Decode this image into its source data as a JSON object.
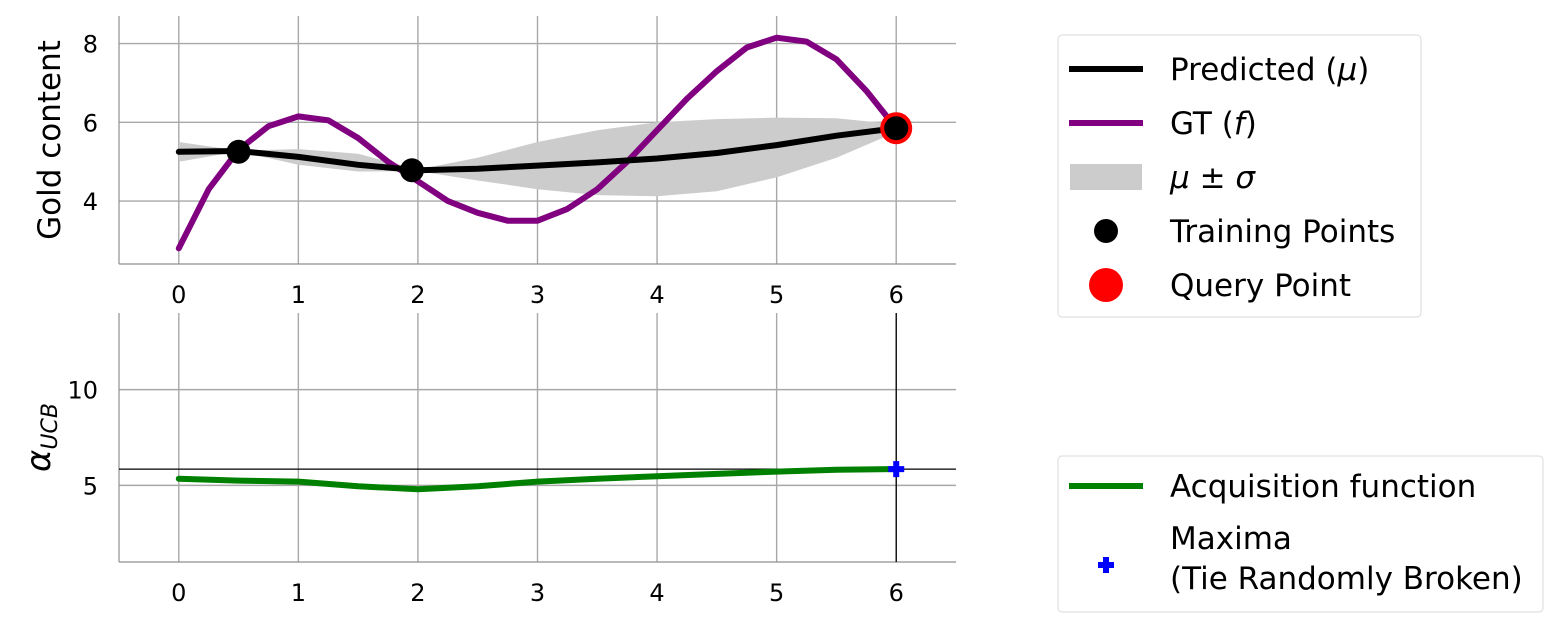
{
  "chart_data": [
    {
      "type": "line",
      "ylabel": "Gold content",
      "xlim": [
        -0.5,
        6.5
      ],
      "ylim": [
        2.4,
        8.7
      ],
      "xticks": [
        0,
        1,
        2,
        3,
        4,
        5,
        6
      ],
      "xtick_labels": [
        "0",
        "1",
        "2",
        "3",
        "4",
        "5",
        "6"
      ],
      "yticks": [
        4,
        6,
        8
      ],
      "ytick_labels": [
        "4",
        "6",
        "8"
      ],
      "grid": true,
      "x": [
        0,
        0.5,
        1,
        1.5,
        2,
        2.5,
        3,
        3.5,
        4,
        4.5,
        5,
        5.5,
        6
      ],
      "series": [
        {
          "name": "Predicted (μ)",
          "color": "#000000",
          "kind": "line",
          "values": [
            5.25,
            5.27,
            5.12,
            4.92,
            4.78,
            4.82,
            4.9,
            4.98,
            5.08,
            5.22,
            5.42,
            5.66,
            5.85
          ]
        },
        {
          "name": "GT (f)",
          "color": "#800080",
          "kind": "line",
          "x": [
            0,
            0.25,
            0.5,
            0.75,
            1,
            1.25,
            1.5,
            1.75,
            2,
            2.25,
            2.5,
            2.75,
            3,
            3.25,
            3.5,
            3.75,
            4,
            4.25,
            4.5,
            4.75,
            5,
            5.25,
            5.5,
            5.75,
            6
          ],
          "values": [
            2.8,
            4.3,
            5.3,
            5.9,
            6.15,
            6.05,
            5.6,
            5.0,
            4.5,
            4.0,
            3.7,
            3.5,
            3.5,
            3.8,
            4.3,
            5.0,
            5.8,
            6.6,
            7.3,
            7.9,
            8.15,
            8.05,
            7.6,
            6.8,
            5.85
          ]
        },
        {
          "name": "μ ± σ",
          "color": "#cccccc",
          "kind": "band",
          "upper": [
            5.5,
            5.28,
            5.32,
            5.2,
            4.8,
            5.1,
            5.5,
            5.8,
            6.0,
            6.08,
            6.12,
            6.1,
            5.95
          ],
          "lower": [
            5.0,
            5.26,
            4.92,
            4.75,
            4.76,
            4.52,
            4.3,
            4.15,
            4.12,
            4.25,
            4.6,
            5.1,
            5.75
          ]
        },
        {
          "name": "Training Points",
          "color": "#000000",
          "kind": "scatter",
          "x": [
            0.5,
            1.95,
            6.0
          ],
          "values": [
            5.25,
            4.78,
            5.85
          ]
        },
        {
          "name": "Query Point",
          "color": "#ff0000",
          "kind": "scatter",
          "x": [
            6.0
          ],
          "values": [
            5.85
          ]
        }
      ]
    },
    {
      "type": "line",
      "ylabel": "α_UCB",
      "xlim": [
        -0.5,
        6.5
      ],
      "ylim": [
        1.0,
        14.0
      ],
      "xticks": [
        0,
        1,
        2,
        3,
        4,
        5,
        6
      ],
      "xtick_labels": [
        "0",
        "1",
        "2",
        "3",
        "4",
        "5",
        "6"
      ],
      "yticks": [
        5,
        10
      ],
      "ytick_labels": [
        "5",
        "10"
      ],
      "grid": true,
      "x": [
        0,
        0.5,
        1,
        1.5,
        2,
        2.5,
        3,
        3.5,
        4,
        4.5,
        5,
        5.5,
        6
      ],
      "series": [
        {
          "name": "Acquisition function",
          "color": "#008000",
          "kind": "line",
          "values": [
            5.35,
            5.25,
            5.2,
            4.95,
            4.8,
            4.95,
            5.2,
            5.35,
            5.48,
            5.6,
            5.72,
            5.82,
            5.85
          ]
        },
        {
          "name": "Maxima\n(Tie Randomly Broken)",
          "color": "#0000ff",
          "kind": "marker",
          "x": [
            6.0
          ],
          "values": [
            5.85
          ]
        }
      ],
      "hline": 5.85,
      "vline": 6.0
    }
  ],
  "legend_top": {
    "placement": "right of upper plot",
    "items": [
      {
        "kind": "line",
        "color": "#000000",
        "pre": "Predicted (",
        "sym": "μ",
        "post": ")"
      },
      {
        "kind": "line",
        "color": "#800080",
        "pre": "GT (",
        "sym": "f",
        "post": ")"
      },
      {
        "kind": "patch",
        "color": "#cccccc",
        "pre": "",
        "sym": "μ ± σ",
        "post": ""
      },
      {
        "kind": "dot",
        "color": "#000000",
        "pre": "Training Points",
        "sym": "",
        "post": ""
      },
      {
        "kind": "bigdot",
        "color": "#ff0000",
        "pre": "Query Point",
        "sym": "",
        "post": ""
      }
    ]
  },
  "legend_bottom": {
    "placement": "right of lower plot",
    "items": [
      {
        "kind": "line",
        "color": "#008000",
        "line1": "Acquisition function",
        "line2": ""
      },
      {
        "kind": "plus",
        "color": "#0000ff",
        "line1": "Maxima",
        "line2": "(Tie Randomly Broken)"
      }
    ]
  }
}
